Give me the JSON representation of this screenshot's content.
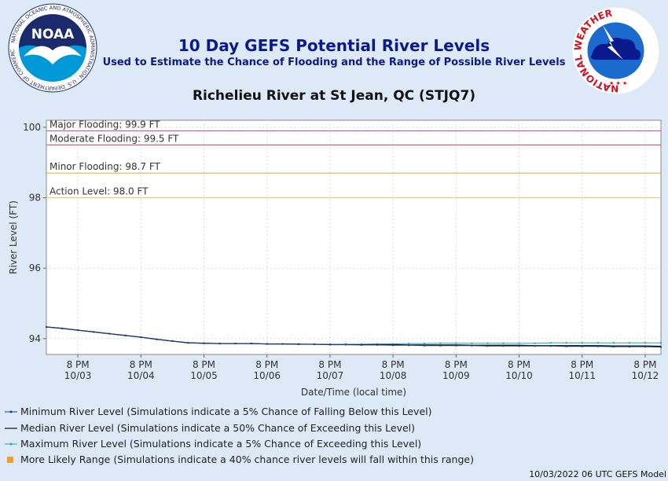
{
  "header": {
    "title": "10 Day GEFS Potential River Levels",
    "subtitle": "Used to Estimate the Chance of Flooding and the Range of Possible River Levels",
    "station": "Richelieu River at St Jean, QC (STJQ7)"
  },
  "logos": {
    "noaa": {
      "text": "NOAA",
      "ring_text": "NATIONAL OCEANIC AND ATMOSPHERIC ADMINISTRATION · U.S. DEPARTMENT OF COMMERCE"
    },
    "nws": {
      "ring_text": "NATIONAL WEATHER SERVICE"
    }
  },
  "chart_data": {
    "type": "line",
    "ylabel": "River Level (FT)",
    "xlabel": "Date/Time (local time)",
    "ylim": [
      93.55,
      100.2
    ],
    "xlim": [
      0,
      9.75
    ],
    "yticks": [
      94,
      96,
      98,
      100
    ],
    "xticks": [
      {
        "x": 0.5,
        "line1": "8 PM",
        "line2": "10/03"
      },
      {
        "x": 1.5,
        "line1": "8 PM",
        "line2": "10/04"
      },
      {
        "x": 2.5,
        "line1": "8 PM",
        "line2": "10/05"
      },
      {
        "x": 3.5,
        "line1": "8 PM",
        "line2": "10/06"
      },
      {
        "x": 4.5,
        "line1": "8 PM",
        "line2": "10/07"
      },
      {
        "x": 5.5,
        "line1": "8 PM",
        "line2": "10/08"
      },
      {
        "x": 6.5,
        "line1": "8 PM",
        "line2": "10/09"
      },
      {
        "x": 7.5,
        "line1": "8 PM",
        "line2": "10/10"
      },
      {
        "x": 8.5,
        "line1": "8 PM",
        "line2": "10/11"
      },
      {
        "x": 9.5,
        "line1": "8 PM",
        "line2": "10/12"
      }
    ],
    "grid": true,
    "thresholds": [
      {
        "label": "Major Flooding: 99.9 FT",
        "value": 99.9,
        "color": "#c050c0"
      },
      {
        "label": "Moderate Flooding: 99.5 FT",
        "value": 99.5,
        "color": "#d04060"
      },
      {
        "label": "Minor Flooding: 98.7 FT",
        "value": 98.7,
        "color": "#e8a830"
      },
      {
        "label": "Action Level: 98.0 FT",
        "value": 98.0,
        "color": "#e8c850"
      }
    ],
    "series": [
      {
        "name": "Maximum River Level",
        "color": "#2aa8a0",
        "x": [
          0,
          0.25,
          0.5,
          0.75,
          1,
          1.25,
          1.5,
          1.75,
          2,
          2.25,
          2.5,
          2.75,
          3,
          3.25,
          3.5,
          3.75,
          4,
          4.25,
          4.5,
          4.75,
          5,
          5.25,
          5.5,
          5.75,
          6,
          6.25,
          6.5,
          6.75,
          7,
          7.25,
          7.5,
          7.75,
          8,
          8.25,
          8.5,
          8.75,
          9,
          9.25,
          9.5,
          9.75
        ],
        "values": [
          94.33,
          94.29,
          94.24,
          94.19,
          94.14,
          94.09,
          94.04,
          93.98,
          93.93,
          93.88,
          93.87,
          93.86,
          93.86,
          93.86,
          93.85,
          93.85,
          93.85,
          93.84,
          93.84,
          93.84,
          93.84,
          93.85,
          93.85,
          93.86,
          93.86,
          93.87,
          93.87,
          93.87,
          93.87,
          93.87,
          93.87,
          93.87,
          93.88,
          93.88,
          93.88,
          93.88,
          93.88,
          93.88,
          93.88,
          93.88
        ]
      },
      {
        "name": "Median River Level",
        "color": "#111111",
        "x": [
          0,
          0.25,
          0.5,
          0.75,
          1,
          1.25,
          1.5,
          1.75,
          2,
          2.25,
          2.5,
          2.75,
          3,
          3.25,
          3.5,
          3.75,
          4,
          4.25,
          4.5,
          4.75,
          5,
          5.25,
          5.5,
          5.75,
          6,
          6.25,
          6.5,
          6.75,
          7,
          7.25,
          7.5,
          7.75,
          8,
          8.25,
          8.5,
          8.75,
          9,
          9.25,
          9.5,
          9.75
        ],
        "values": [
          94.33,
          94.29,
          94.24,
          94.19,
          94.14,
          94.09,
          94.04,
          93.98,
          93.93,
          93.88,
          93.87,
          93.86,
          93.86,
          93.86,
          93.85,
          93.85,
          93.84,
          93.84,
          93.83,
          93.83,
          93.83,
          93.83,
          93.83,
          93.82,
          93.82,
          93.82,
          93.82,
          93.81,
          93.81,
          93.81,
          93.81,
          93.8,
          93.8,
          93.8,
          93.8,
          93.8,
          93.79,
          93.79,
          93.79,
          93.78
        ]
      },
      {
        "name": "Minimum River Level",
        "color": "#1a3a8a",
        "x": [
          0,
          0.25,
          0.5,
          0.75,
          1,
          1.25,
          1.5,
          1.75,
          2,
          2.25,
          2.5,
          2.75,
          3,
          3.25,
          3.5,
          3.75,
          4,
          4.25,
          4.5,
          4.75,
          5,
          5.25,
          5.5,
          5.75,
          6,
          6.25,
          6.5,
          6.75,
          7,
          7.25,
          7.5,
          7.75,
          8,
          8.25,
          8.5,
          8.75,
          9,
          9.25,
          9.5,
          9.75
        ],
        "values": [
          94.33,
          94.29,
          94.24,
          94.19,
          94.14,
          94.09,
          94.04,
          93.98,
          93.93,
          93.88,
          93.87,
          93.86,
          93.86,
          93.86,
          93.85,
          93.85,
          93.84,
          93.84,
          93.83,
          93.83,
          93.82,
          93.82,
          93.81,
          93.81,
          93.8,
          93.8,
          93.8,
          93.8,
          93.79,
          93.79,
          93.79,
          93.79,
          93.79,
          93.78,
          93.78,
          93.78,
          93.77,
          93.77,
          93.77,
          93.76
        ]
      }
    ]
  },
  "legend": {
    "min_label": "Minimum River Level (Simulations indicate a 5% Chance of Falling Below this Level)",
    "median_label": "Median River Level (Simulations indicate a 50% Chance of Exceeding this Level)",
    "max_label": "Maximum River Level (Simulations indicate a 5% Chance of Exceeding this Level)",
    "range_label": "More Likely Range (Simulations indicate a 40% chance river levels will fall within this range)",
    "range_color": "#f0a020"
  },
  "footer": {
    "text": "10/03/2022 06 UTC GEFS Model"
  }
}
